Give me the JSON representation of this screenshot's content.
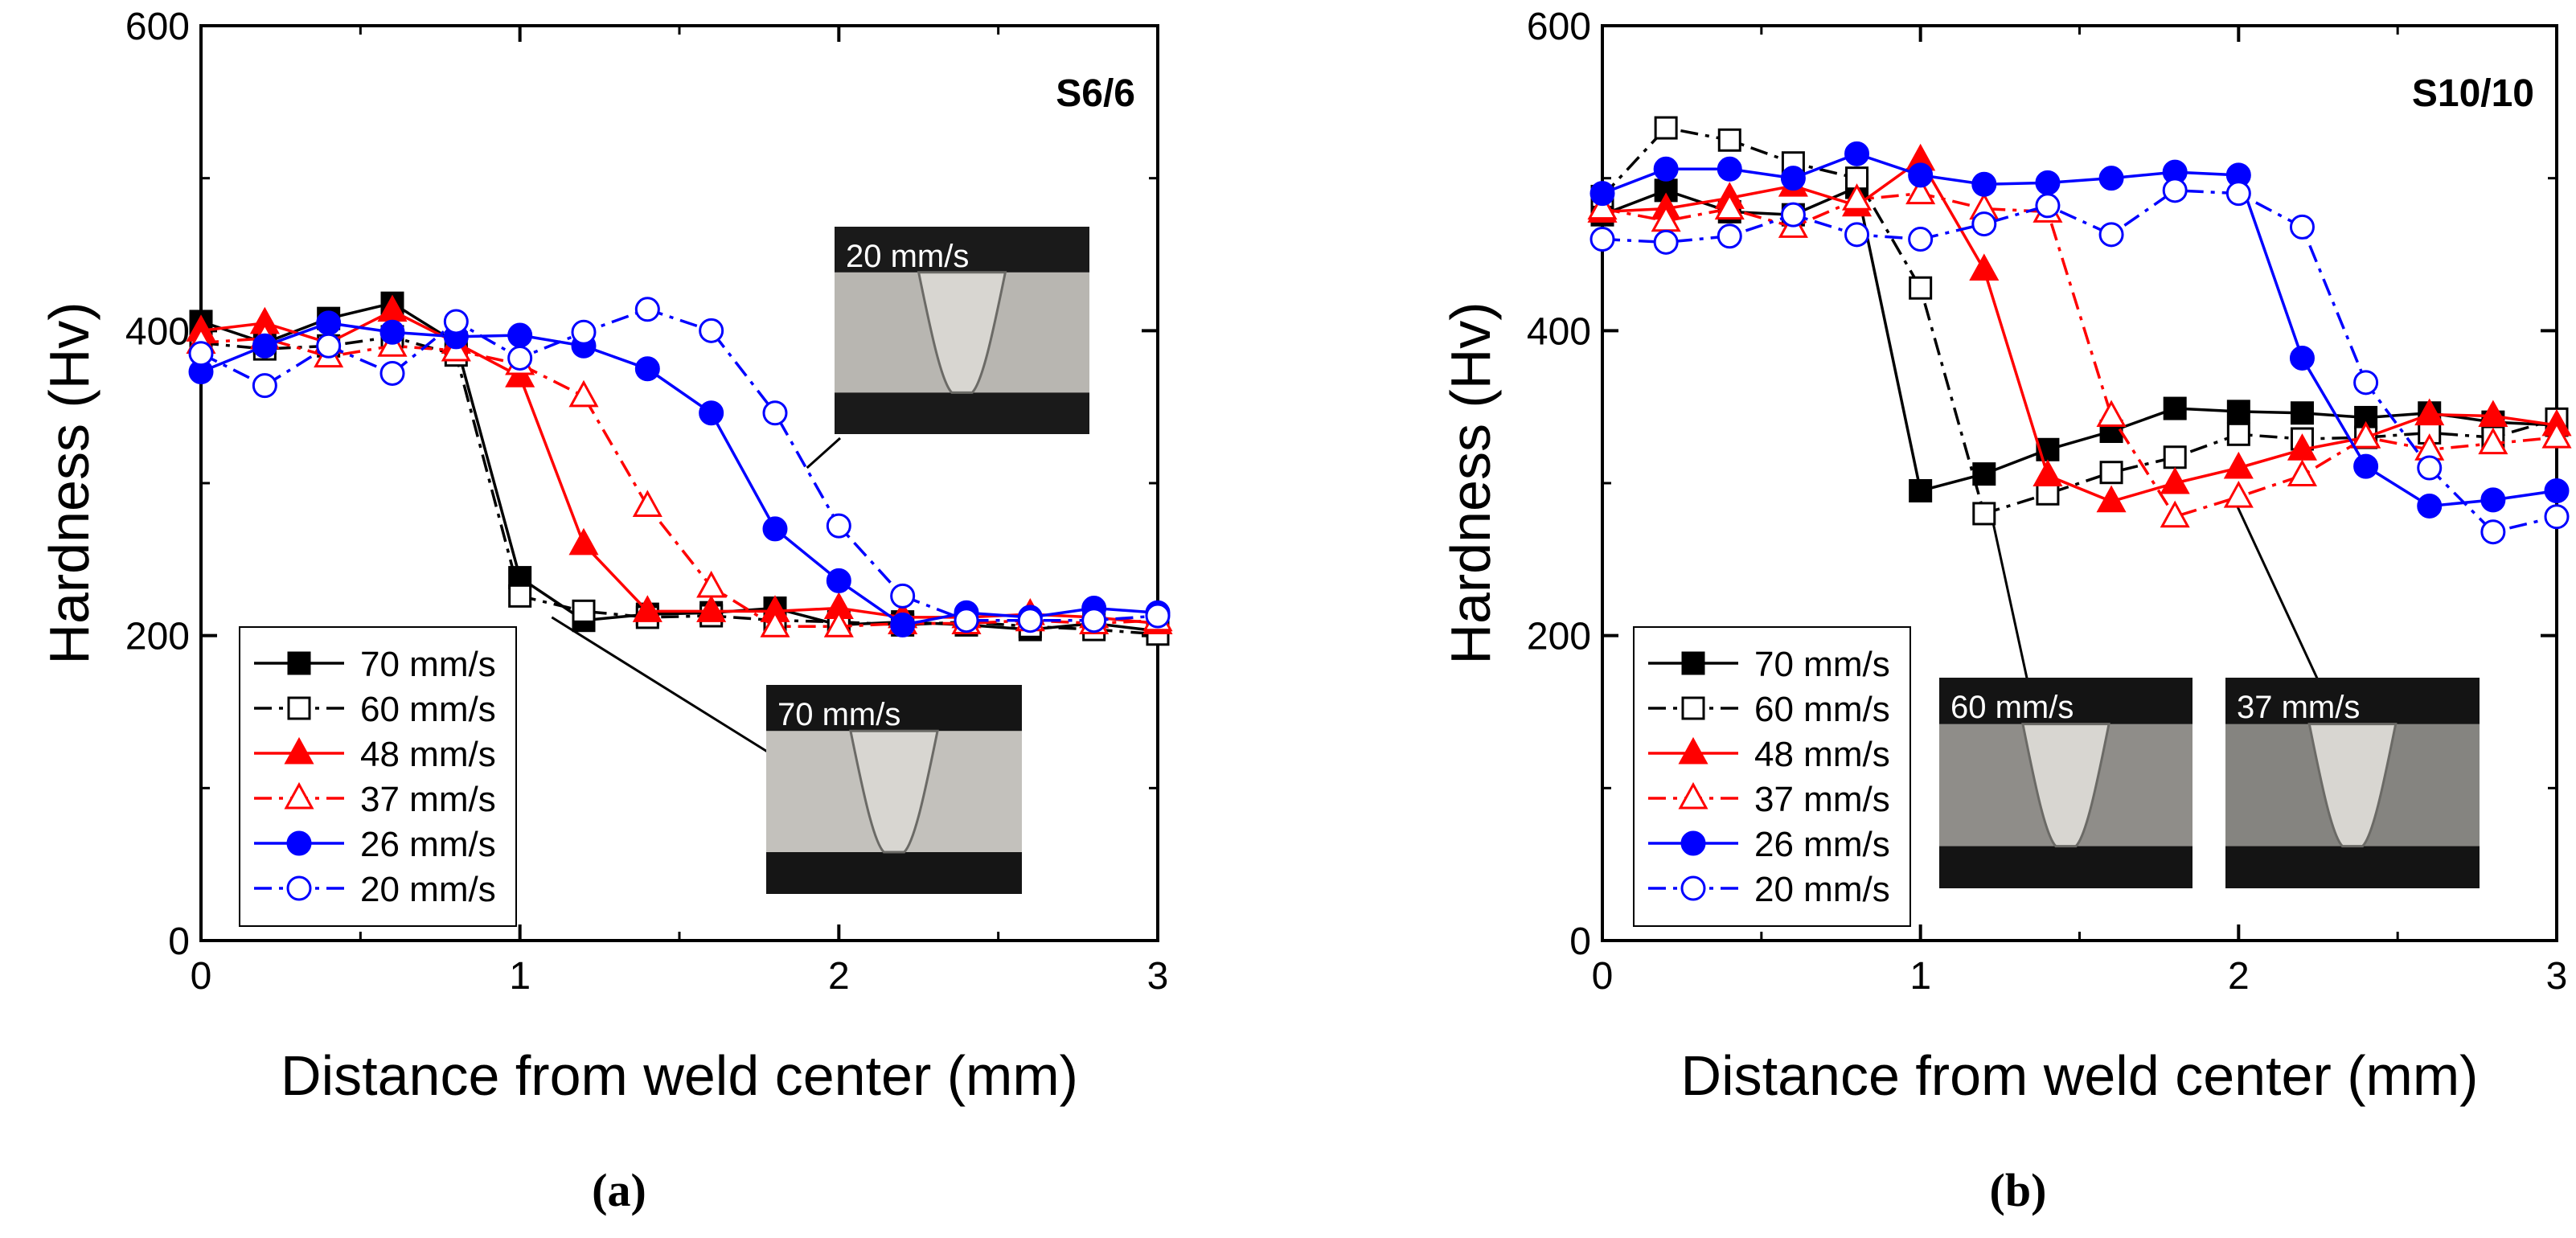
{
  "chart_data": [
    {
      "type": "line",
      "panel_label": "(a)",
      "title": "S6/6",
      "xlabel": "Distance from weld center (mm)",
      "ylabel": "Hardness (Hv)",
      "xlim": [
        0,
        3
      ],
      "ylim": [
        0,
        600
      ],
      "xticks": [
        "0",
        "1",
        "2",
        "3"
      ],
      "yticks": [
        "0",
        "200",
        "400",
        "600"
      ],
      "legend_position": "bottom-left",
      "insets": [
        {
          "label": "20 mm/s",
          "points_to": [
            1.9,
            310
          ]
        },
        {
          "label": "70 mm/s",
          "points_to": [
            1.1,
            212
          ]
        }
      ],
      "series": [
        {
          "name": "70 mm/s",
          "color": "#000000",
          "marker": "square",
          "filled": true,
          "dash": "solid",
          "x": [
            0,
            0.2,
            0.4,
            0.6,
            0.8,
            1.0,
            1.2,
            1.4,
            1.6,
            1.8,
            2.0,
            2.2,
            2.4,
            2.6,
            2.8,
            3.0
          ],
          "y": [
            406,
            392,
            408,
            418,
            392,
            238,
            210,
            214,
            215,
            218,
            207,
            209,
            207,
            204,
            208,
            203
          ]
        },
        {
          "name": "60 mm/s",
          "color": "#000000",
          "marker": "square",
          "filled": false,
          "dash": "dashdot",
          "x": [
            0,
            0.2,
            0.4,
            0.6,
            0.8,
            1.0,
            1.2,
            1.4,
            1.6,
            1.8,
            2.0,
            2.2,
            2.4,
            2.6,
            2.8,
            3.0
          ],
          "y": [
            392,
            388,
            390,
            396,
            384,
            226,
            216,
            212,
            213,
            210,
            209,
            207,
            209,
            206,
            204,
            201
          ]
        },
        {
          "name": "48 mm/s",
          "color": "#ff0000",
          "marker": "triangle",
          "filled": true,
          "dash": "solid",
          "x": [
            0,
            0.2,
            0.4,
            0.6,
            0.8,
            1.0,
            1.2,
            1.4,
            1.6,
            1.8,
            2.0,
            2.2,
            2.4,
            2.6,
            2.8,
            3.0
          ],
          "y": [
            400,
            405,
            392,
            413,
            392,
            370,
            260,
            216,
            216,
            216,
            218,
            212,
            212,
            214,
            212,
            208
          ]
        },
        {
          "name": "37 mm/s",
          "color": "#ff0000",
          "marker": "triangle",
          "filled": false,
          "dash": "dashdot",
          "x": [
            0,
            0.2,
            0.4,
            0.6,
            0.8,
            1.0,
            1.2,
            1.4,
            1.6,
            1.8,
            2.0,
            2.2,
            2.4,
            2.6,
            2.8,
            3.0
          ],
          "y": [
            392,
            395,
            383,
            390,
            387,
            378,
            357,
            285,
            232,
            206,
            206,
            208,
            208,
            210,
            208,
            210
          ]
        },
        {
          "name": "26 mm/s",
          "color": "#0000ff",
          "marker": "circle",
          "filled": true,
          "dash": "solid",
          "x": [
            0,
            0.2,
            0.4,
            0.6,
            0.8,
            1.0,
            1.2,
            1.4,
            1.6,
            1.8,
            2.0,
            2.2,
            2.4,
            2.6,
            2.8,
            3.0
          ],
          "y": [
            373,
            390,
            405,
            399,
            396,
            397,
            390,
            375,
            346,
            270,
            236,
            207,
            215,
            212,
            218,
            215
          ]
        },
        {
          "name": "20 mm/s",
          "color": "#0000ff",
          "marker": "circle",
          "filled": false,
          "dash": "dashdot",
          "x": [
            0,
            0.2,
            0.4,
            0.6,
            0.8,
            1.0,
            1.2,
            1.4,
            1.6,
            1.8,
            2.0,
            2.2,
            2.4,
            2.6,
            2.8,
            3.0
          ],
          "y": [
            385,
            364,
            390,
            372,
            406,
            382,
            399,
            414,
            400,
            346,
            272,
            226,
            210,
            210,
            210,
            213
          ]
        }
      ]
    },
    {
      "type": "line",
      "panel_label": "(b)",
      "title": "S10/10",
      "xlabel": "Distance from weld center (mm)",
      "ylabel": "Hardness (Hv)",
      "xlim": [
        0,
        3
      ],
      "ylim": [
        0,
        600
      ],
      "xticks": [
        "0",
        "1",
        "2",
        "3"
      ],
      "yticks": [
        "0",
        "200",
        "400",
        "600"
      ],
      "legend_position": "bottom-left",
      "insets": [
        {
          "label": "60 mm/s",
          "points_to": [
            1.22,
            282
          ]
        },
        {
          "label": "37 mm/s",
          "points_to": [
            1.98,
            292
          ]
        }
      ],
      "series": [
        {
          "name": "70 mm/s",
          "color": "#000000",
          "marker": "square",
          "filled": true,
          "dash": "solid",
          "x": [
            0,
            0.2,
            0.4,
            0.6,
            0.8,
            1.0,
            1.2,
            1.4,
            1.6,
            1.8,
            2.0,
            2.2,
            2.4,
            2.6,
            2.8,
            3.0
          ],
          "y": [
            476,
            492,
            478,
            476,
            494,
            295,
            306,
            322,
            334,
            349,
            347,
            346,
            343,
            346,
            340,
            338
          ]
        },
        {
          "name": "60 mm/s",
          "color": "#000000",
          "marker": "square",
          "filled": false,
          "dash": "dashdot",
          "x": [
            0,
            0.2,
            0.4,
            0.6,
            0.8,
            1.0,
            1.2,
            1.4,
            1.6,
            1.8,
            2.0,
            2.2,
            2.4,
            2.6,
            2.8,
            3.0
          ],
          "y": [
            488,
            533,
            525,
            510,
            500,
            428,
            280,
            293,
            307,
            317,
            332,
            329,
            330,
            333,
            330,
            342
          ]
        },
        {
          "name": "48 mm/s",
          "color": "#ff0000",
          "marker": "triangle",
          "filled": true,
          "dash": "solid",
          "x": [
            0,
            0.2,
            0.4,
            0.6,
            0.8,
            1.0,
            1.2,
            1.4,
            1.6,
            1.8,
            2.0,
            2.2,
            2.4,
            2.6,
            2.8,
            3.0
          ],
          "y": [
            478,
            480,
            487,
            495,
            482,
            512,
            440,
            305,
            288,
            300,
            310,
            322,
            330,
            345,
            344,
            338
          ]
        },
        {
          "name": "37 mm/s",
          "color": "#ff0000",
          "marker": "triangle",
          "filled": false,
          "dash": "dashdot",
          "x": [
            0,
            0.2,
            0.4,
            0.6,
            0.8,
            1.0,
            1.2,
            1.4,
            1.6,
            1.8,
            2.0,
            2.2,
            2.4,
            2.6,
            2.8,
            3.0
          ],
          "y": [
            480,
            472,
            480,
            468,
            486,
            490,
            480,
            478,
            344,
            278,
            291,
            305,
            330,
            322,
            326,
            330
          ]
        },
        {
          "name": "26 mm/s",
          "color": "#0000ff",
          "marker": "circle",
          "filled": true,
          "dash": "solid",
          "x": [
            0,
            0.2,
            0.4,
            0.6,
            0.8,
            1.0,
            1.2,
            1.4,
            1.6,
            1.8,
            2.0,
            2.2,
            2.4,
            2.6,
            2.8,
            3.0
          ],
          "y": [
            490,
            506,
            506,
            500,
            516,
            502,
            496,
            497,
            500,
            504,
            502,
            382,
            311,
            285,
            289,
            295
          ]
        },
        {
          "name": "20 mm/s",
          "color": "#0000ff",
          "marker": "circle",
          "filled": false,
          "dash": "dashdot",
          "x": [
            0,
            0.2,
            0.4,
            0.6,
            0.8,
            1.0,
            1.2,
            1.4,
            1.6,
            1.8,
            2.0,
            2.2,
            2.4,
            2.6,
            2.8,
            3.0
          ],
          "y": [
            460,
            458,
            462,
            476,
            463,
            460,
            470,
            482,
            463,
            492,
            490,
            468,
            366,
            310,
            268,
            278
          ]
        }
      ]
    }
  ]
}
